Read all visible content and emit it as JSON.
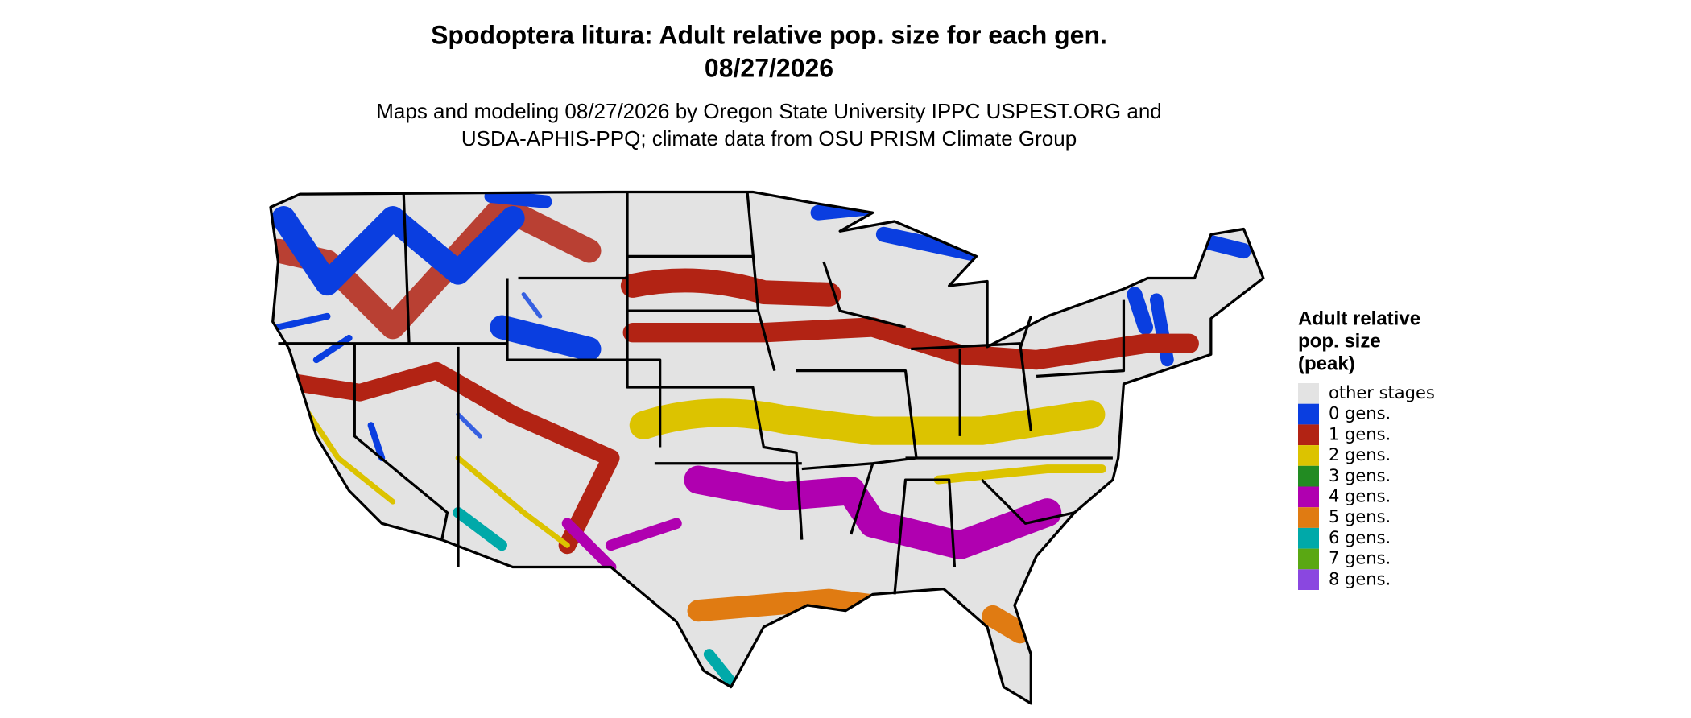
{
  "title": "Spodoptera litura: Adult relative pop. size for each gen.",
  "date": "08/27/2026",
  "subtitle": [
    "Maps and modeling 08/27/2026 by Oregon State University IPPC USPEST.ORG and",
    "USDA-APHIS-PPQ; climate data from OSU PRISM Climate Group"
  ],
  "legend": {
    "title": [
      "Adult relative",
      "pop. size",
      "(peak)"
    ],
    "items": [
      {
        "label": "other stages",
        "color": "#e3e3e3"
      },
      {
        "label": "0 gens.",
        "color": "#0a3ee0"
      },
      {
        "label": "1 gens.",
        "color": "#b22314"
      },
      {
        "label": "2 gens.",
        "color": "#dcc300"
      },
      {
        "label": "3 gens.",
        "color": "#228b22"
      },
      {
        "label": "4 gens.",
        "color": "#b000b0"
      },
      {
        "label": "5 gens.",
        "color": "#e07b12"
      },
      {
        "label": "6 gens.",
        "color": "#00a9a9"
      },
      {
        "label": "7 gens.",
        "color": "#5aa813"
      },
      {
        "label": "8 gens.",
        "color": "#8a47e0"
      }
    ]
  }
}
